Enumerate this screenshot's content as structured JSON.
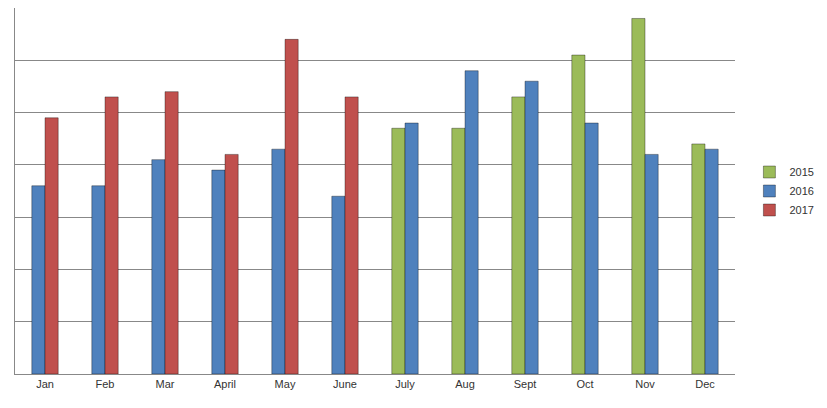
{
  "chart_data": {
    "type": "bar",
    "categories": [
      "Jan",
      "Feb",
      "Mar",
      "April",
      "May",
      "June",
      "July",
      "Aug",
      "Sept",
      "Oct",
      "Nov",
      "Dec"
    ],
    "series": [
      {
        "name": "2015",
        "color": "#9bbb59",
        "values": [
          null,
          null,
          null,
          null,
          null,
          null,
          4.7,
          4.7,
          5.3,
          6.1,
          6.8,
          4.4
        ]
      },
      {
        "name": "2016",
        "color": "#4f81bd",
        "values": [
          3.6,
          3.6,
          4.1,
          3.9,
          4.3,
          3.4,
          4.8,
          5.8,
          5.6,
          4.8,
          4.2,
          4.3
        ]
      },
      {
        "name": "2017",
        "color": "#c0504d",
        "values": [
          4.9,
          5.3,
          5.4,
          4.2,
          6.4,
          5.3,
          null,
          null,
          null,
          null,
          null,
          null
        ]
      }
    ],
    "ylim": [
      0,
      7
    ],
    "yticks": [
      0,
      1,
      2,
      3,
      4,
      5,
      6,
      7
    ],
    "grid": true,
    "legend": "right",
    "tick_labels": "x"
  }
}
